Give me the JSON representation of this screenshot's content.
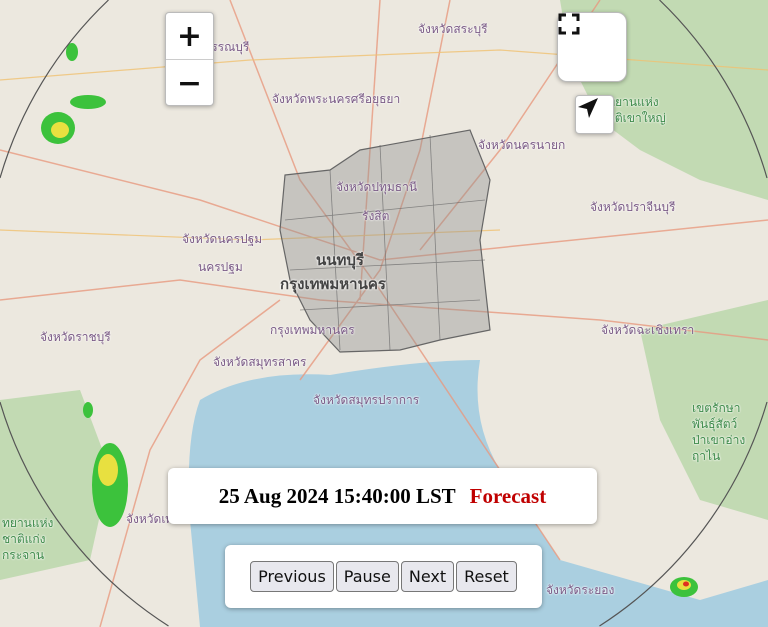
{
  "map": {
    "labels": [
      {
        "text": "สุพรรณบุรี",
        "style": "normal"
      },
      {
        "text": "จังหวัดสระบุรี",
        "style": "normal"
      },
      {
        "text": "จังหวัดพระนครศรีอยุธยา",
        "style": "normal"
      },
      {
        "text": "จังหวัดนครนายก",
        "style": "normal"
      },
      {
        "text": "จังหวัดปทุมธานี",
        "style": "normal"
      },
      {
        "text": "รังสิต",
        "style": "normal"
      },
      {
        "text": "จังหวัดนครปฐม",
        "style": "normal"
      },
      {
        "text": "นครปฐม",
        "style": "normal"
      },
      {
        "text": "นนทบุรี",
        "style": "big"
      },
      {
        "text": "กรุงเทพมหานคร",
        "style": "big"
      },
      {
        "text": "กรุงเทพมหานคร",
        "style": "normal"
      },
      {
        "text": "จังหวัดปราจีนบุรี",
        "style": "normal"
      },
      {
        "text": "จังหวัดฉะเชิงเทรา",
        "style": "normal"
      },
      {
        "text": "จังหวัดราชบุรี",
        "style": "normal"
      },
      {
        "text": "จังหวัดสมุทรสาคร",
        "style": "normal"
      },
      {
        "text": "จังหวัดสมุทรปราการ",
        "style": "normal"
      },
      {
        "text": "จังหวัดระยอง",
        "style": "normal"
      },
      {
        "text": "จังหวัดเพ",
        "style": "normal"
      },
      {
        "text": "อุทยานแห่ง\nชาติเขาใหญ่",
        "style": "green"
      },
      {
        "text": "เขตรักษา\nพันธุ์สัตว์\nป่าเขาอ่าง\nฤาไน",
        "style": "green"
      },
      {
        "text": "ทยานแห่ง\nชาติแก่ง\nกระจาน",
        "style": "green"
      }
    ],
    "colors": {
      "land": "#ece8df",
      "sea": "#aacfe0",
      "forest": "#b8d6a8",
      "district": "#8f8f8f",
      "radar_green": "#3cc23c",
      "radar_yellow": "#e8e040",
      "radar_red": "#e03020"
    }
  },
  "controls": {
    "zoom_in": "+",
    "zoom_out": "−",
    "fullscreen_icon": "fullscreen-icon",
    "locate_icon": "location-arrow-icon"
  },
  "timestamp": {
    "text": "25 Aug 2024 15:40:00 LST",
    "mode": "Forecast"
  },
  "playback": {
    "previous": "Previous",
    "pause": "Pause",
    "next": "Next",
    "reset": "Reset"
  }
}
